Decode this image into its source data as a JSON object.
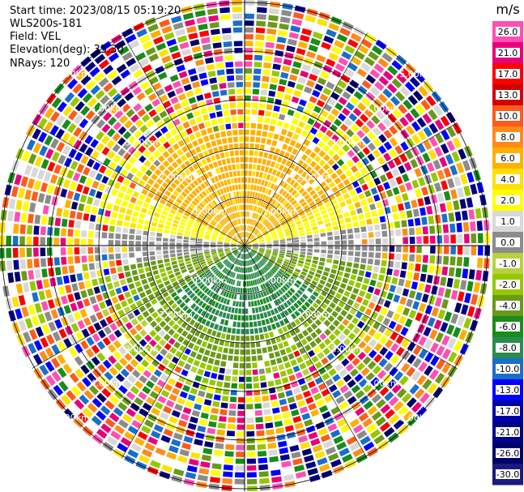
{
  "header": {
    "start_time": "Start time: 2023/08/15 05:19:20",
    "instrument": "WLS200s-181",
    "field": "Field: VEL",
    "elevation": "Elevation(deg): 35.30",
    "nrays": "NRays: 120"
  },
  "colorbar": {
    "unit": "m/s",
    "ticks": [
      "26.0",
      "21.0",
      "17.0",
      "13.0",
      "10.0",
      "8.0",
      "6.0",
      "4.0",
      "2.0",
      "1.0",
      "0.0",
      "-1.0",
      "-2.0",
      "-4.0",
      "-6.0",
      "-8.0",
      "-10.0",
      "-13.0",
      "-17.0",
      "-21.0",
      "-26.0",
      "-30.0"
    ],
    "colors": [
      "#ff4fb4",
      "#e8007a",
      "#ff0000",
      "#d40000",
      "#ff5a1a",
      "#ff8a1a",
      "#ffb000",
      "#ffe000",
      "#ffff00",
      "#d8d8d8",
      "#8c8c8c",
      "#b8d23c",
      "#96c800",
      "#6a9a1a",
      "#1a8c1a",
      "#2a8a50",
      "#1a6ecc",
      "#0000ff",
      "#0000aa",
      "#000088",
      "#00006a",
      "#1a1a80"
    ]
  },
  "chart_data": {
    "type": "polar-ppi",
    "field": "VEL",
    "units": "m/s",
    "nrays": 120,
    "range_ring_labels": [
      "1.00km",
      "2.00km",
      "3.00km",
      "4.00km",
      "5.00km"
    ]
  }
}
